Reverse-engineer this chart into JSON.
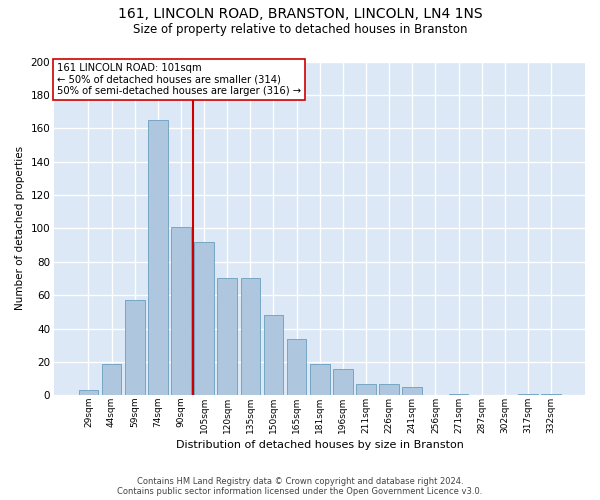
{
  "title": "161, LINCOLN ROAD, BRANSTON, LINCOLN, LN4 1NS",
  "subtitle": "Size of property relative to detached houses in Branston",
  "xlabel": "Distribution of detached houses by size in Branston",
  "ylabel": "Number of detached properties",
  "categories": [
    "29sqm",
    "44sqm",
    "59sqm",
    "74sqm",
    "90sqm",
    "105sqm",
    "120sqm",
    "135sqm",
    "150sqm",
    "165sqm",
    "181sqm",
    "196sqm",
    "211sqm",
    "226sqm",
    "241sqm",
    "256sqm",
    "271sqm",
    "287sqm",
    "302sqm",
    "317sqm",
    "332sqm"
  ],
  "values": [
    3,
    19,
    57,
    165,
    101,
    92,
    70,
    70,
    48,
    34,
    19,
    16,
    7,
    7,
    5,
    0,
    1,
    0,
    0,
    1,
    1
  ],
  "bar_color": "#aec6de",
  "bar_edgecolor": "#6a9fc0",
  "plot_bg_color": "#dce8f5",
  "fig_bg_color": "#ffffff",
  "grid_color": "#ffffff",
  "ylim": [
    0,
    200
  ],
  "yticks": [
    0,
    20,
    40,
    60,
    80,
    100,
    120,
    140,
    160,
    180,
    200
  ],
  "vline_x": 4.5,
  "vline_color": "#cc0000",
  "annotation_text": "161 LINCOLN ROAD: 101sqm\n← 50% of detached houses are smaller (314)\n50% of semi-detached houses are larger (316) →",
  "footer_line1": "Contains HM Land Registry data © Crown copyright and database right 2024.",
  "footer_line2": "Contains public sector information licensed under the Open Government Licence v3.0."
}
